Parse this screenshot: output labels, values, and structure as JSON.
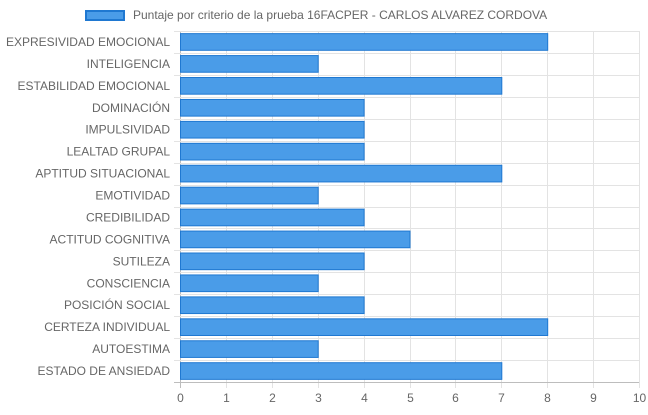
{
  "chart_data": {
    "type": "bar",
    "orientation": "horizontal",
    "categories": [
      "EXPRESIVIDAD EMOCIONAL",
      "INTELIGENCIA",
      "ESTABILIDAD EMOCIONAL",
      "DOMINACIÓN",
      "IMPULSIVIDAD",
      "LEALTAD GRUPAL",
      "APTITUD SITUACIONAL",
      "EMOTIVIDAD",
      "CREDIBILIDAD",
      "ACTITUD COGNITIVA",
      "SUTILEZA",
      "CONSCIENCIA",
      "POSICIÓN SOCIAL",
      "CERTEZA INDIVIDUAL",
      "AUTOESTIMA",
      "ESTADO DE ANSIEDAD"
    ],
    "series": [
      {
        "name": "Puntaje por criterio de la prueba 16FACPER - CARLOS ALVAREZ CORDOVA",
        "values": [
          8,
          3,
          7,
          4,
          4,
          4,
          7,
          3,
          4,
          5,
          4,
          3,
          4,
          8,
          3,
          7
        ],
        "color": "#4a9ce8",
        "border_color": "#1f78d1"
      }
    ],
    "xlim": [
      0,
      10
    ],
    "x_ticks": [
      "0",
      "1",
      "2",
      "3",
      "4",
      "5",
      "6",
      "7",
      "8",
      "9",
      "10"
    ],
    "grid": true,
    "legend_position": "top"
  }
}
